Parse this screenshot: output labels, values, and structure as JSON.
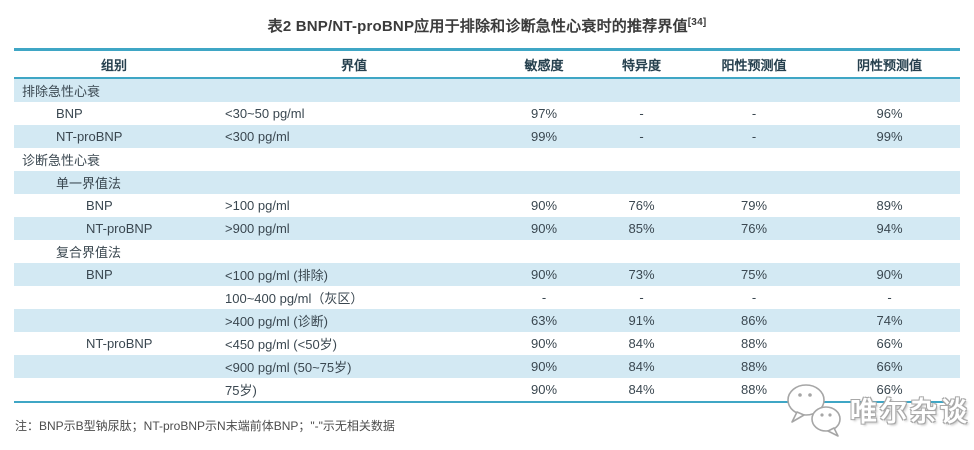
{
  "title": {
    "text": "表2 BNP/NT-proBNP应用于排除和诊断急性心衰时的推荐界值",
    "superscript": "[34]"
  },
  "table": {
    "columns": [
      "组别",
      "界值",
      "敏感度",
      "特异度",
      "阳性预测值",
      "阴性预测值"
    ],
    "rows": [
      {
        "group": "排除急性心衰",
        "indent": 0,
        "cutoff": "",
        "sensitivity": "",
        "specificity": "",
        "ppv": "",
        "npv": ""
      },
      {
        "group": "BNP",
        "indent": 1,
        "cutoff": "<30~50 pg/ml",
        "sensitivity": "97%",
        "specificity": "-",
        "ppv": "-",
        "npv": "96%"
      },
      {
        "group": "NT-proBNP",
        "indent": 1,
        "cutoff": "<300 pg/ml",
        "sensitivity": "99%",
        "specificity": "-",
        "ppv": "-",
        "npv": "99%"
      },
      {
        "group": "诊断急性心衰",
        "indent": 0,
        "cutoff": "",
        "sensitivity": "",
        "specificity": "",
        "ppv": "",
        "npv": ""
      },
      {
        "group": "单一界值法",
        "indent": 1,
        "cutoff": "",
        "sensitivity": "",
        "specificity": "",
        "ppv": "",
        "npv": ""
      },
      {
        "group": "BNP",
        "indent": 2,
        "cutoff": ">100 pg/ml",
        "sensitivity": "90%",
        "specificity": "76%",
        "ppv": "79%",
        "npv": "89%"
      },
      {
        "group": "NT-proBNP",
        "indent": 2,
        "cutoff": ">900 pg/ml",
        "sensitivity": "90%",
        "specificity": "85%",
        "ppv": "76%",
        "npv": "94%"
      },
      {
        "group": "复合界值法",
        "indent": 1,
        "cutoff": "",
        "sensitivity": "",
        "specificity": "",
        "ppv": "",
        "npv": ""
      },
      {
        "group": "BNP",
        "indent": 2,
        "cutoff": "<100 pg/ml (排除)",
        "sensitivity": "90%",
        "specificity": "73%",
        "ppv": "75%",
        "npv": "90%"
      },
      {
        "group": "",
        "indent": 2,
        "cutoff": "100~400 pg/ml（灰区）",
        "sensitivity": "-",
        "specificity": "-",
        "ppv": "-",
        "npv": "-"
      },
      {
        "group": "",
        "indent": 2,
        "cutoff": ">400 pg/ml (诊断)",
        "sensitivity": "63%",
        "specificity": "91%",
        "ppv": "86%",
        "npv": "74%"
      },
      {
        "group": "NT-proBNP",
        "indent": 2,
        "cutoff": "<450 pg/ml (<50岁)",
        "sensitivity": "90%",
        "specificity": "84%",
        "ppv": "88%",
        "npv": "66%"
      },
      {
        "group": "",
        "indent": 2,
        "cutoff": "<900 pg/ml (50~75岁)",
        "sensitivity": "90%",
        "specificity": "84%",
        "ppv": "88%",
        "npv": "66%"
      },
      {
        "group": "",
        "indent": 2,
        "cutoff": "75岁)",
        "sensitivity": "90%",
        "specificity": "84%",
        "ppv": "88%",
        "npv": "66%"
      }
    ]
  },
  "footnote": "注：BNP示B型钠尿肽；NT-proBNP示N末端前体BNP；\"-\"示无相关数据",
  "watermark": {
    "text": "唯尔杂谈",
    "icon": "wechat-logo-icon"
  },
  "colors": {
    "accent_teal_border": "#3fa6c5",
    "row_band_blue": "#d3e9f3",
    "header_text": "#26404e",
    "body_text": "#3a4750",
    "title_text": "#3b3b3b",
    "footnote_text": "#4d4d4d"
  }
}
